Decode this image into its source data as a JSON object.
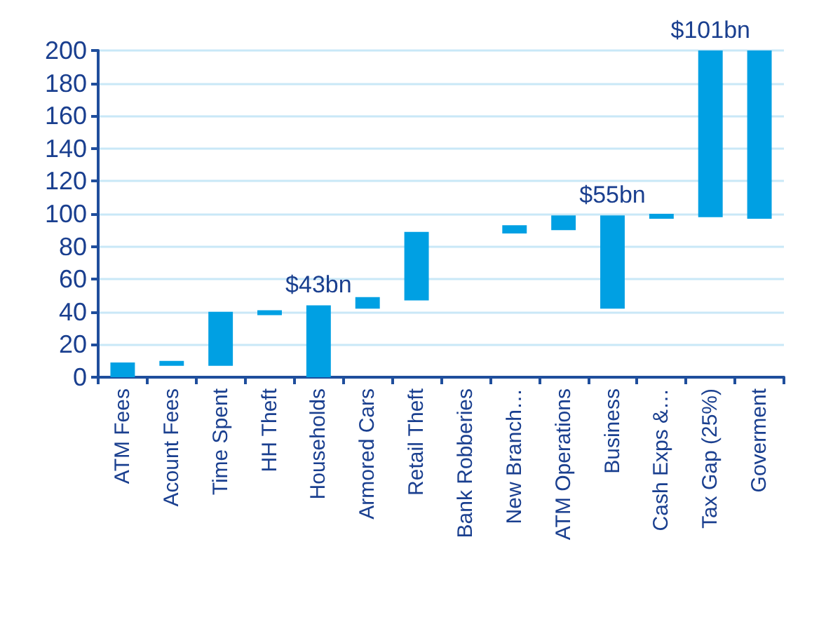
{
  "chart_data": {
    "type": "bar",
    "categories": [
      "ATM Fees",
      "Acount Fees",
      "Time Spent",
      "HH Theft",
      "Households",
      "Armored Cars",
      "Retail Theft",
      "Bank Robberies",
      "New Branch…",
      "ATM Operations",
      "Business",
      "Cash Exps &…",
      "Tax Gap (25%)",
      "Goverment"
    ],
    "values": [
      9,
      3,
      33,
      3,
      44,
      7,
      42,
      null,
      5,
      9,
      57,
      3,
      102,
      103
    ],
    "base": [
      0,
      7,
      7,
      38,
      0,
      42,
      47,
      null,
      88,
      90,
      42,
      97,
      98,
      97
    ],
    "color": "#00a0e3",
    "ylim": [
      0,
      200
    ],
    "yticks": [
      0,
      20,
      40,
      60,
      80,
      100,
      120,
      140,
      160,
      180,
      200
    ],
    "grid": "y",
    "annotations": [
      {
        "text": "$43bn",
        "x": "Households",
        "y": 44
      },
      {
        "text": "$55bn",
        "x": "Business",
        "y": 99
      },
      {
        "text": "$101bn",
        "x": "Tax Gap (25%)",
        "y": 200
      }
    ]
  }
}
